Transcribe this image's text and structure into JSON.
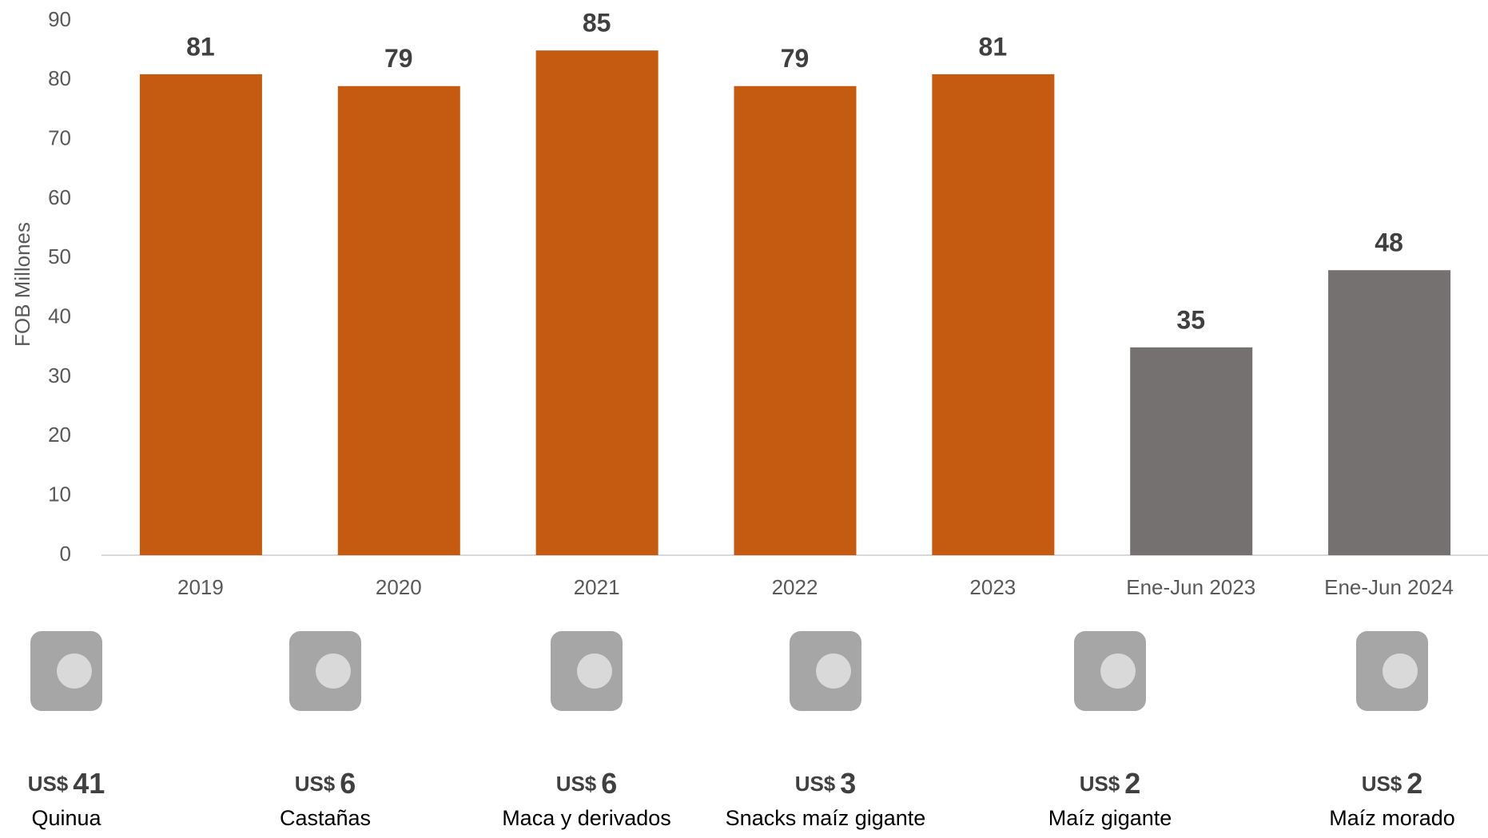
{
  "chart_data": {
    "type": "bar",
    "y_axis_label": "FOB Millones",
    "categories": [
      "2019",
      "2020",
      "2021",
      "2022",
      "2023",
      "Ene-Jun 2023",
      "Ene-Jun 2024"
    ],
    "values": [
      81,
      79,
      85,
      79,
      81,
      35,
      48
    ],
    "colors": [
      "#c55a11",
      "#c55a11",
      "#c55a11",
      "#c55a11",
      "#c55a11",
      "#767171",
      "#767171"
    ],
    "ylim": [
      0,
      90
    ],
    "yticks": [
      0,
      10,
      20,
      30,
      40,
      50,
      60,
      70,
      80,
      90
    ],
    "grid": false
  },
  "products": {
    "currency_label": "US$",
    "items": [
      {
        "amount": 41,
        "name": "Quinua"
      },
      {
        "amount": 6,
        "name": "Castañas"
      },
      {
        "amount": 6,
        "name": "Maca y derivados"
      },
      {
        "amount": 3,
        "name": "Snacks maíz gigante"
      },
      {
        "amount": 2,
        "name": "Maíz gigante"
      },
      {
        "amount": 2,
        "name": "Maíz morado"
      }
    ]
  }
}
